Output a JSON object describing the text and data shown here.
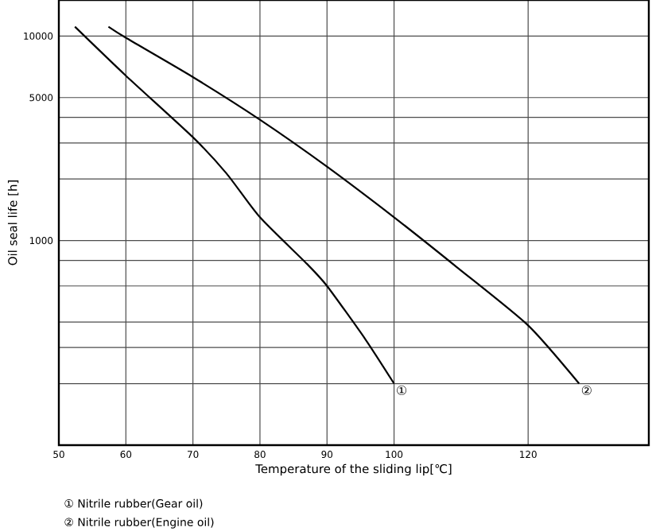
{
  "chart_data": {
    "type": "line",
    "xlabel": "Temperature of the sliding lip[℃]",
    "ylabel": "Oil seal life [h]",
    "xlim": [
      50,
      138
    ],
    "ylim": [
      100,
      15000
    ],
    "log": "y",
    "xticks": [
      50,
      60,
      70,
      80,
      90,
      100,
      120
    ],
    "yticks": [
      {
        "value": 200,
        "label": null
      },
      {
        "value": 300,
        "label": null
      },
      {
        "value": 400,
        "label": null
      },
      {
        "value": 600,
        "label": null
      },
      {
        "value": 800,
        "label": null
      },
      1000,
      {
        "value": 2000,
        "label": null
      },
      {
        "value": 3000,
        "label": null
      },
      {
        "value": 4000,
        "label": null
      },
      5000,
      10000
    ],
    "grid": true,
    "marker": "none",
    "line_style": "solid",
    "series": [
      {
        "color": "#000000",
        "x": [
          52.4,
          60,
          70,
          75,
          80,
          87,
          90,
          95.7,
          100
        ],
        "values": [
          11100,
          6400,
          3200,
          2130,
          1300,
          770,
          600,
          330,
          200
        ]
      },
      {
        "color": "#000000",
        "x": [
          57.4,
          60,
          70,
          80,
          90,
          100,
          109.4,
          120,
          127.6
        ],
        "values": [
          11100,
          9800,
          6300,
          3900,
          2300,
          1300,
          740,
          385,
          200
        ]
      }
    ],
    "annotations": [
      {
        "text": "①",
        "x": 100,
        "y": 200
      },
      {
        "text": "②",
        "x": 127.6,
        "y": 200
      },
      "① Nitrile rubber(Gear oil)",
      "② Nitrile rubber(Engine oil)"
    ]
  }
}
